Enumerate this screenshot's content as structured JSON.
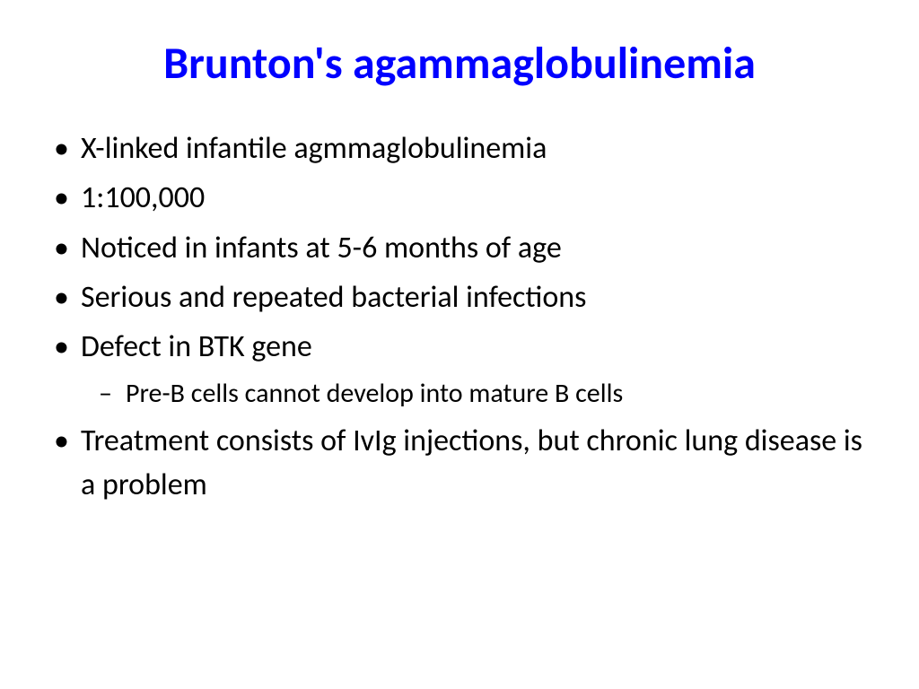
{
  "slide": {
    "title": "Brunton's agammaglobulinemia",
    "title_color": "#0000ff",
    "title_fontsize": 50,
    "title_fontweight": "bold",
    "body_color": "#000000",
    "body_fontsize": 34,
    "sub_body_fontsize": 30,
    "background_color": "#ffffff",
    "bullets": [
      {
        "text": "X-linked infantile agmmaglobulinemia",
        "level": 1
      },
      {
        "text": "1:100,000",
        "level": 1
      },
      {
        "text": "Noticed in infants at 5-6 months of age",
        "level": 1
      },
      {
        "text": "Serious and repeated bacterial infections",
        "level": 1
      },
      {
        "text": "Defect in BTK gene",
        "level": 1
      },
      {
        "text": "Pre-B cells cannot develop into mature B cells",
        "level": 2
      },
      {
        "text": "Treatment consists of IvIg injections, but chronic lung disease is a problem",
        "level": 1
      }
    ]
  }
}
